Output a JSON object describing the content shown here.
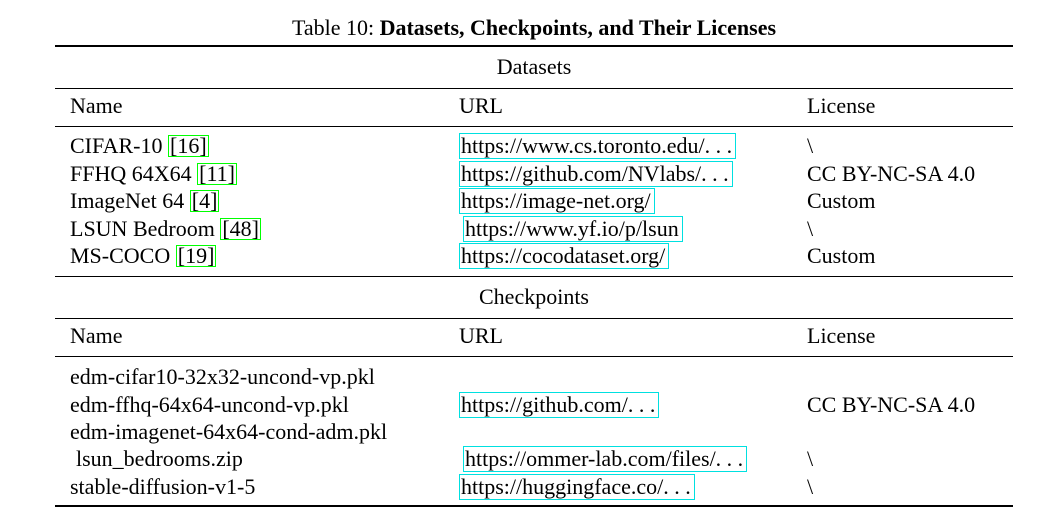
{
  "caption": {
    "label": "Table 10: ",
    "title": "Datasets, Checkpoints, and Their Licenses"
  },
  "datasets": {
    "section_title": "Datasets",
    "headers": {
      "name": "Name",
      "url": "URL",
      "license": "License"
    },
    "rows": [
      {
        "name": "CIFAR-10 ",
        "cite": "16",
        "url": "https://www.cs.toronto.edu/. . .",
        "license": "\\"
      },
      {
        "name": "FFHQ 64X64 ",
        "cite": "11",
        "url": "https://github.com/NVlabs/. . .",
        "license": "CC BY-NC-SA 4.0"
      },
      {
        "name": "ImageNet 64 ",
        "cite": "4",
        "url": "https://image-net.org/",
        "license": "Custom"
      },
      {
        "name": "LSUN Bedroom ",
        "cite": "48",
        "url": "https://www.yf.io/p/lsun",
        "license": "\\"
      },
      {
        "name": "MS-COCO ",
        "cite": "19",
        "url": "https://cocodataset.org/",
        "license": "Custom"
      }
    ]
  },
  "checkpoints": {
    "section_title": "Checkpoints",
    "headers": {
      "name": "Name",
      "url": "URL",
      "license": "License"
    },
    "rows": [
      {
        "name": "edm-cifar10-32x32-uncond-vp.pkl"
      },
      {
        "name": "edm-ffhq-64x64-uncond-vp.pkl",
        "url": "https://github.com/. . .",
        "license": "CC BY-NC-SA 4.0"
      },
      {
        "name": "edm-imagenet-64x64-cond-adm.pkl"
      },
      {
        "name": "lsun_bedrooms.zip",
        "url": "https://ommer-lab.com/files/. . .",
        "license": "\\"
      },
      {
        "name": "stable-diffusion-v1-5",
        "url": "https://huggingface.co/. . .",
        "license": "\\"
      }
    ]
  }
}
